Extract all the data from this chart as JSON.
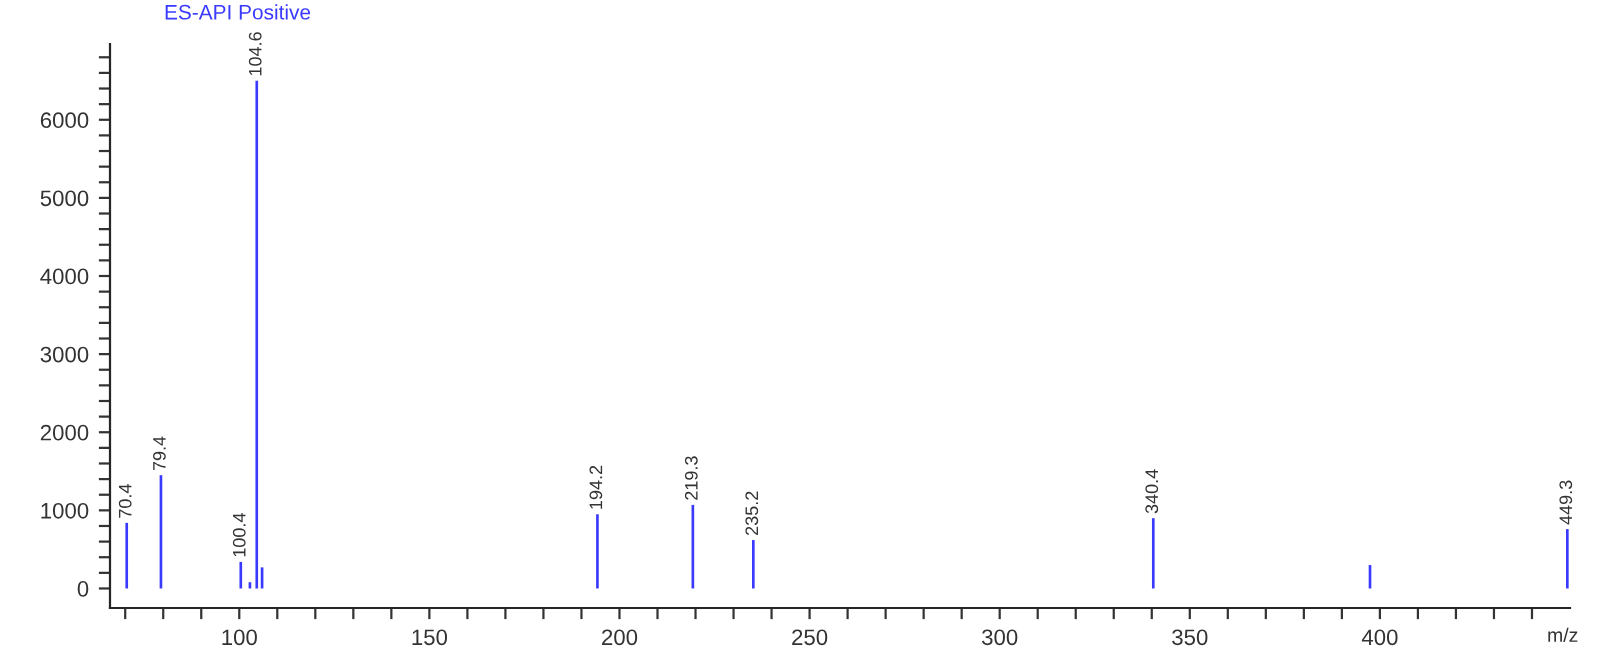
{
  "chart_data": {
    "type": "bar",
    "title": "ES-API Positive",
    "xlabel": "m/z",
    "x": [
      70.4,
      79.4,
      100.4,
      102.8,
      104.6,
      106.0,
      194.2,
      219.3,
      235.2,
      340.4,
      397.4,
      449.3
    ],
    "values": [
      840,
      1450,
      340,
      80,
      6500,
      270,
      950,
      1070,
      620,
      900,
      300,
      760
    ],
    "annotations": [
      {
        "text": "70.4",
        "x": 70.4,
        "y": 840
      },
      {
        "text": "79.4",
        "x": 79.4,
        "y": 1450
      },
      {
        "text": "100.4",
        "x": 100.4,
        "y": 340
      },
      {
        "text": "104.6",
        "x": 104.6,
        "y": 6500
      },
      {
        "text": "194.2",
        "x": 194.2,
        "y": 950
      },
      {
        "text": "219.3",
        "x": 219.3,
        "y": 1070
      },
      {
        "text": "235.2",
        "x": 235.2,
        "y": 620
      },
      {
        "text": "340.4",
        "x": 340.4,
        "y": 900
      },
      {
        "text": "449.3",
        "x": 449.3,
        "y": 760
      }
    ],
    "color": "#3a3aff",
    "xlim": [
      66,
      450
    ],
    "ylim": [
      -250,
      6970
    ],
    "xticks": [
      {
        "value": 70,
        "label": null
      },
      {
        "value": 80,
        "label": null
      },
      {
        "value": 90,
        "label": null
      },
      100,
      {
        "value": 110,
        "label": null
      },
      {
        "value": 120,
        "label": null
      },
      {
        "value": 130,
        "label": null
      },
      {
        "value": 140,
        "label": null
      },
      150,
      {
        "value": 160,
        "label": null
      },
      {
        "value": 170,
        "label": null
      },
      {
        "value": 180,
        "label": null
      },
      {
        "value": 190,
        "label": null
      },
      200,
      {
        "value": 210,
        "label": null
      },
      {
        "value": 220,
        "label": null
      },
      {
        "value": 230,
        "label": null
      },
      {
        "value": 240,
        "label": null
      },
      250,
      {
        "value": 260,
        "label": null
      },
      {
        "value": 270,
        "label": null
      },
      {
        "value": 280,
        "label": null
      },
      {
        "value": 290,
        "label": null
      },
      300,
      {
        "value": 310,
        "label": null
      },
      {
        "value": 320,
        "label": null
      },
      {
        "value": 330,
        "label": null
      },
      {
        "value": 340,
        "label": null
      },
      350,
      {
        "value": 360,
        "label": null
      },
      {
        "value": 370,
        "label": null
      },
      {
        "value": 380,
        "label": null
      },
      {
        "value": 390,
        "label": null
      },
      400,
      {
        "value": 410,
        "label": null
      },
      {
        "value": 420,
        "label": null
      },
      {
        "value": 430,
        "label": null
      },
      {
        "value": 440,
        "label": null
      }
    ],
    "yticks": [
      0,
      {
        "value": 200,
        "label": null
      },
      {
        "value": 400,
        "label": null
      },
      {
        "value": 600,
        "label": null
      },
      {
        "value": 800,
        "label": null
      },
      1000,
      {
        "value": 1200,
        "label": null
      },
      {
        "value": 1400,
        "label": null
      },
      {
        "value": 1600,
        "label": null
      },
      {
        "value": 1800,
        "label": null
      },
      2000,
      {
        "value": 2200,
        "label": null
      },
      {
        "value": 2400,
        "label": null
      },
      {
        "value": 2600,
        "label": null
      },
      {
        "value": 2800,
        "label": null
      },
      3000,
      {
        "value": 3200,
        "label": null
      },
      {
        "value": 3400,
        "label": null
      },
      {
        "value": 3600,
        "label": null
      },
      {
        "value": 3800,
        "label": null
      },
      4000,
      {
        "value": 4200,
        "label": null
      },
      {
        "value": 4400,
        "label": null
      },
      {
        "value": 4600,
        "label": null
      },
      {
        "value": 4800,
        "label": null
      },
      5000,
      {
        "value": 5200,
        "label": null
      },
      {
        "value": 5400,
        "label": null
      },
      {
        "value": 5600,
        "label": null
      },
      {
        "value": 5800,
        "label": null
      },
      6000,
      {
        "value": 6200,
        "label": null
      },
      {
        "value": 6400,
        "label": null
      },
      {
        "value": 6600,
        "label": null
      },
      {
        "value": 6800,
        "label": null
      }
    ],
    "grid": false,
    "legend": false
  }
}
